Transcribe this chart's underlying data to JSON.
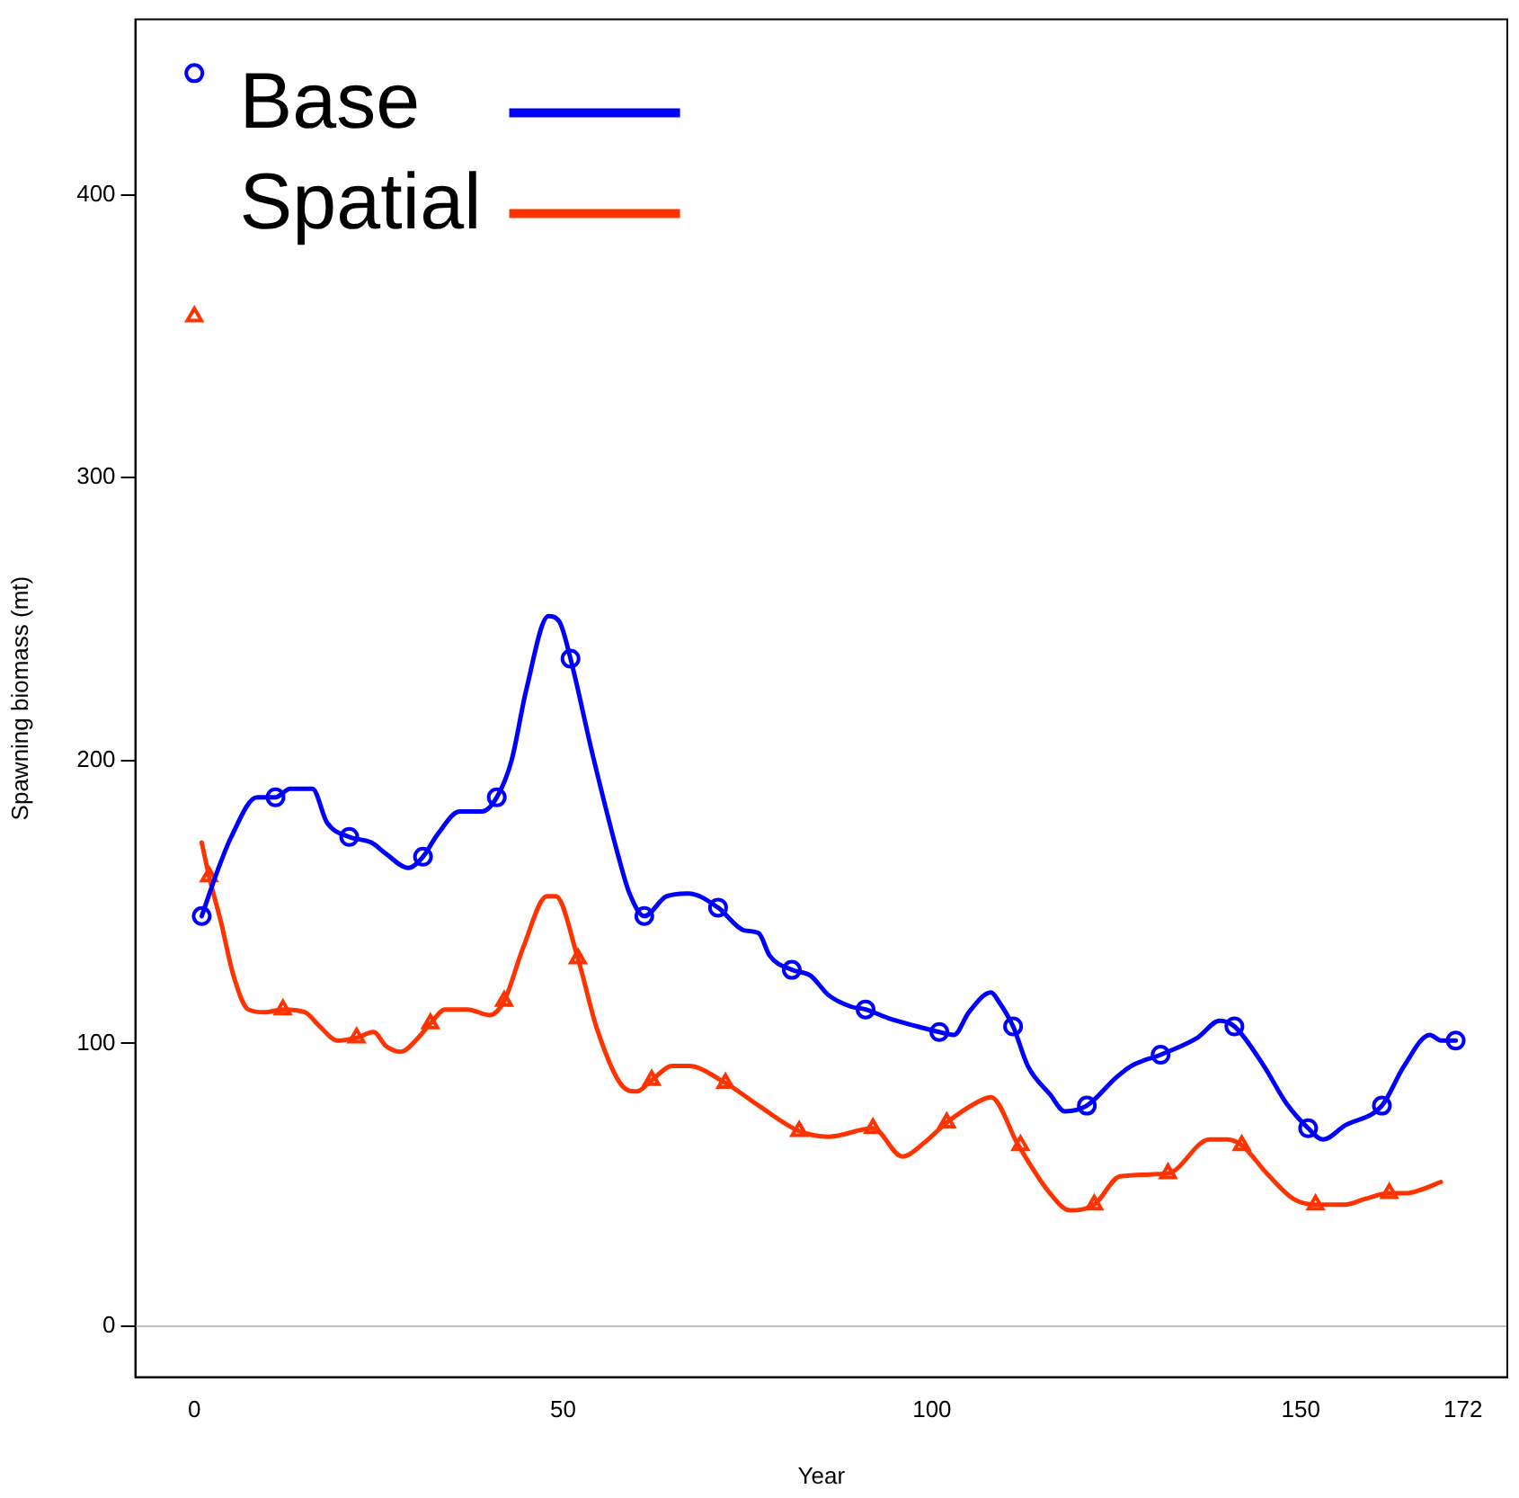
{
  "chart_data": {
    "type": "line",
    "xlabel": "Year",
    "ylabel": "Spawning biomass (mt)",
    "xlim": [
      -8,
      178
    ],
    "xticks": [
      0,
      50,
      100,
      150,
      172
    ],
    "ylim": [
      -18,
      462
    ],
    "yticks": [
      0,
      100,
      200,
      300,
      400
    ],
    "grid": false,
    "legend": "top left",
    "marker": "none",
    "line_style": "solid",
    "ref_lines": [
      {
        "axis": "y",
        "value": 0,
        "color": "#bebebe"
      }
    ],
    "series": [
      {
        "name": "Base",
        "color": "#0000ff",
        "x": [
          1,
          3,
          5,
          8.5,
          11,
          13,
          16,
          18,
          21,
          24,
          26,
          29,
          31,
          33,
          36,
          39,
          41,
          43,
          45,
          48,
          49.5,
          51,
          54,
          57.5,
          59,
          61,
          64,
          67,
          71,
          74.5,
          76.5,
          78,
          81,
          83.5,
          86,
          89,
          91,
          94,
          98,
          101,
          103,
          105,
          108,
          109,
          111,
          113,
          116,
          118,
          121,
          125,
          127,
          131,
          136,
          139,
          141,
          145,
          148,
          151,
          153,
          156,
          161,
          164,
          167.5,
          169,
          171
        ],
        "values": [
          145,
          160,
          173,
          187,
          187,
          190,
          190,
          178,
          173,
          171,
          167,
          162,
          166,
          174,
          182,
          182,
          187,
          200,
          225,
          251,
          249,
          236,
          202,
          166,
          153,
          145,
          152,
          153,
          148,
          140,
          139,
          131,
          126,
          124,
          117,
          113,
          112,
          109,
          106,
          104,
          103,
          111,
          118,
          115,
          106,
          92,
          82,
          76,
          78,
          88,
          92,
          96,
          102,
          108,
          106,
          92,
          79,
          70,
          66,
          71,
          78,
          92,
          103,
          101,
          101
        ]
      },
      {
        "name": "Spatial",
        "color": "#ff3300",
        "x": [
          1,
          2,
          3.6,
          5.3,
          7.3,
          9.5,
          12,
          15,
          17,
          19.4,
          22,
          24.3,
          26,
          28,
          30,
          32,
          34,
          37,
          40,
          42,
          44.6,
          47.8,
          49,
          52,
          54.6,
          58,
          60,
          62,
          64.8,
          67,
          72,
          76.5,
          82,
          86,
          92,
          96,
          99,
          102,
          106,
          108,
          111.7,
          116,
          118.7,
          122,
          125.5,
          132,
          137.6,
          140,
          142,
          145.4,
          149,
          152,
          156,
          158.7,
          162,
          164.3,
          166,
          169
        ],
        "values": [
          171,
          159,
          143,
          124,
          112,
          111,
          112,
          111,
          106,
          101,
          102,
          104,
          99,
          97,
          101,
          107,
          112,
          112,
          110,
          115,
          134,
          152,
          152,
          130,
          105,
          85,
          83,
          87,
          92,
          92,
          86,
          78,
          69,
          67,
          70,
          60,
          65,
          72,
          79,
          81,
          64,
          47,
          41,
          43,
          53,
          54,
          66,
          66,
          64,
          54,
          45,
          43,
          43,
          45,
          47,
          47,
          48,
          51
        ]
      },
      {
        "type": "scatter",
        "color": "#0000ff",
        "marker": "circle",
        "x": [
          0,
          1,
          11,
          21,
          31,
          41,
          51,
          61,
          71,
          81,
          91,
          101,
          111,
          121,
          131,
          141,
          151,
          161,
          171
        ],
        "values": [
          443,
          145,
          187,
          173,
          166,
          187,
          236,
          145,
          148,
          126,
          112,
          104,
          106,
          78,
          96,
          106,
          70,
          78,
          101
        ]
      },
      {
        "type": "scatter",
        "color": "#ff3300",
        "marker": "triangle",
        "x": [
          0,
          2,
          12,
          22,
          32,
          42,
          52,
          62,
          72,
          82,
          92,
          102,
          112,
          122,
          132,
          142,
          152,
          162
        ],
        "values": [
          357,
          159,
          112,
          102,
          107,
          115,
          130,
          87,
          86,
          69,
          70,
          72,
          64,
          43,
          54,
          64,
          43,
          47
        ]
      }
    ]
  }
}
